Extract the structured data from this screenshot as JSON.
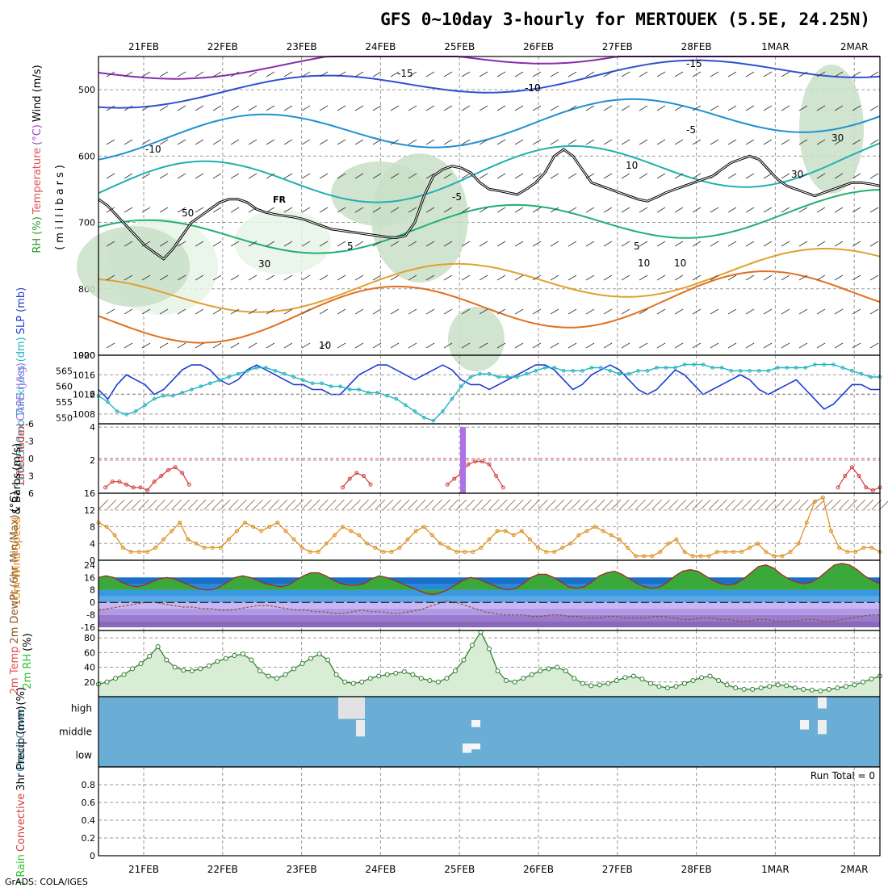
{
  "title": "GFS 0~10day 3-hourly for MERTOUEK (5.5E, 24.25N)",
  "credit": "GrADS: COLA/IGES",
  "date_ticks": [
    "21FEB",
    "22FEB",
    "23FEB",
    "24FEB",
    "25FEB",
    "26FEB",
    "27FEB",
    "28FEB",
    "1MAR",
    "2MAR"
  ],
  "colors": {
    "frame": "#000000",
    "grid": "#9a9a9a",
    "cloud_bg": "#6aaed6",
    "slp": "#1e3cd2",
    "thickness": "#20b4c0",
    "lifted": "#d23c3c",
    "cape": "#b070e8",
    "wind": "#e09020",
    "rh": "#30c030"
  },
  "chart_data": [
    {
      "type": "contour",
      "panel": "upper-air",
      "ylabel_parts": [
        {
          "text": "RH (%)",
          "color": "#2a9a2a"
        },
        {
          "text": "Temperature",
          "color": "#e05050"
        },
        {
          "text": "(°C)",
          "color": "#a040c0"
        },
        {
          "text": "Wind (m/s)",
          "color": "#000000"
        }
      ],
      "ylabel2": "(millibars)",
      "ylim": [
        900,
        450
      ],
      "yticks": [
        500,
        600,
        700,
        800,
        900
      ],
      "freezing_label": "FR",
      "contour_labels": [
        "-15",
        "-10",
        "-10",
        "-15",
        "-10",
        "-5",
        "-5",
        "5",
        "5",
        "10",
        "10",
        "10",
        "30",
        "30",
        "30",
        "50",
        "10"
      ],
      "freezing_level_mb": [
        665,
        675,
        690,
        705,
        720,
        735,
        745,
        755,
        740,
        720,
        700,
        690,
        680,
        670,
        665,
        665,
        670,
        680,
        685,
        688,
        690,
        692,
        695,
        700,
        705,
        710,
        712,
        714,
        716,
        718,
        720,
        722,
        723,
        720,
        700,
        660,
        630,
        620,
        615,
        618,
        625,
        640,
        650,
        652,
        655,
        658,
        650,
        640,
        625,
        600,
        590,
        600,
        620,
        640,
        645,
        650,
        655,
        660,
        665,
        668,
        662,
        655,
        650,
        645,
        640,
        635,
        630,
        620,
        610,
        605,
        600,
        605,
        620,
        635,
        645,
        650,
        655,
        660,
        655,
        650,
        645,
        640,
        640,
        642,
        645
      ]
    },
    {
      "type": "line",
      "panel": "slp-thickness",
      "ylabel_parts": [
        {
          "text": "1000-500mb",
          "color": "#20b4c0"
        },
        {
          "text": "Thickness (dm)",
          "color": "#20b4c0"
        },
        {
          "text": "SLP (mb)",
          "color": "#1e3cd2"
        }
      ],
      "left_ticks": [
        550,
        555,
        560,
        565
      ],
      "right_ticks": [
        1008,
        1012,
        1016,
        1020
      ],
      "slp_ylim": [
        1006,
        1020
      ],
      "thickness_ylim": [
        548,
        570
      ],
      "series": [
        {
          "name": "SLP",
          "axis": "right",
          "values": [
            1013,
            1011,
            1014,
            1016,
            1015,
            1014,
            1012,
            1013,
            1015,
            1017,
            1018,
            1018,
            1017,
            1015,
            1014,
            1015,
            1017,
            1018,
            1017,
            1016,
            1015,
            1014,
            1014,
            1013,
            1013,
            1012,
            1012,
            1014,
            1016,
            1017,
            1018,
            1018,
            1017,
            1016,
            1015,
            1016,
            1017,
            1018,
            1017,
            1015,
            1014,
            1014,
            1013,
            1014,
            1015,
            1016,
            1017,
            1018,
            1018,
            1017,
            1015,
            1013,
            1014,
            1016,
            1017,
            1018,
            1017,
            1015,
            1013,
            1012,
            1013,
            1015,
            1017,
            1016,
            1014,
            1012,
            1013,
            1014,
            1015,
            1016,
            1015,
            1013,
            1012,
            1013,
            1014,
            1015,
            1013,
            1011,
            1009,
            1010,
            1012,
            1014,
            1014,
            1013,
            1013
          ]
        },
        {
          "name": "Thickness",
          "axis": "left",
          "values": [
            557,
            555,
            552,
            551,
            552,
            554,
            556,
            557,
            557,
            558,
            559,
            560,
            561,
            562,
            563,
            564,
            565,
            566,
            566,
            565,
            564,
            563,
            562,
            561,
            561,
            560,
            560,
            559,
            559,
            558,
            558,
            557,
            556,
            554,
            552,
            550,
            549,
            552,
            556,
            560,
            563,
            564,
            564,
            563,
            563,
            563,
            564,
            565,
            566,
            566,
            565,
            565,
            565,
            566,
            566,
            565,
            564,
            564,
            565,
            565,
            566,
            566,
            566,
            567,
            567,
            567,
            566,
            566,
            565,
            565,
            565,
            565,
            565,
            566,
            566,
            566,
            566,
            567,
            567,
            567,
            566,
            565,
            564,
            563,
            563
          ]
        }
      ]
    },
    {
      "type": "line",
      "panel": "lifted-index-cape",
      "ylabel_parts": [
        {
          "text": "Lifted Index",
          "color": "#d23c3c"
        },
        {
          "text": "CAPE (J/kg)",
          "color": "#b070e8"
        }
      ],
      "left_ticks": [
        -6,
        -3,
        0,
        3,
        6
      ],
      "right_ticks": [
        2,
        4,
        6
      ],
      "lifted_ylim": [
        6,
        -6
      ],
      "cape_ylim": [
        0,
        4.2
      ],
      "series": [
        {
          "name": "Lifted Index",
          "values": [
            null,
            5,
            4,
            4,
            4.5,
            5,
            5,
            5.5,
            4,
            3,
            2,
            1.5,
            2.5,
            4.5,
            null,
            null,
            null,
            null,
            null,
            null,
            null,
            null,
            null,
            null,
            null,
            null,
            null,
            null,
            null,
            null,
            null,
            null,
            null,
            null,
            null,
            5,
            3.5,
            2.5,
            3,
            4.5,
            null,
            null,
            null,
            null,
            null,
            null,
            null,
            null,
            null,
            null,
            4.5,
            3.5,
            2.5,
            1,
            0.5,
            0.5,
            1,
            3,
            5,
            null,
            null,
            null,
            null,
            null,
            null,
            null,
            null,
            null,
            null,
            null,
            null,
            null,
            null,
            null,
            null,
            null,
            null,
            null,
            null,
            null,
            null,
            null,
            null,
            null,
            null,
            null,
            null,
            null,
            null,
            null,
            null,
            null,
            null,
            null,
            null,
            null,
            null,
            null,
            null,
            null,
            null,
            null,
            null,
            null,
            null,
            null,
            5,
            3,
            1.5,
            3,
            5,
            5.5,
            5
          ]
        },
        {
          "name": "CAPE",
          "bars": [
            {
              "index": 41,
              "value": 4
            }
          ]
        }
      ]
    },
    {
      "type": "line",
      "panel": "10m-wind",
      "ylabel_parts": [
        {
          "text": "10m Wind",
          "color": "#e09020"
        },
        {
          "text": "Speed",
          "color": "#e09020"
        },
        {
          "text": "& Barbs",
          "color": "#000000"
        },
        {
          "text": "(m/s)",
          "color": "#000000"
        }
      ],
      "yticks": [
        0,
        4,
        8,
        12,
        16
      ],
      "ylim": [
        0,
        16
      ],
      "series": [
        {
          "name": "Wind Speed",
          "values": [
            9,
            8,
            6,
            3,
            2,
            2,
            2,
            3,
            5,
            7,
            9,
            5,
            4,
            3,
            3,
            3,
            5,
            7,
            9,
            8,
            7,
            8,
            9,
            7,
            5,
            3,
            2,
            2,
            4,
            6,
            8,
            7,
            6,
            4,
            3,
            2,
            2,
            3,
            5,
            7,
            8,
            6,
            4,
            3,
            2,
            2,
            2,
            3,
            5,
            7,
            7,
            6,
            7,
            5,
            3,
            2,
            2,
            3,
            4,
            6,
            7,
            8,
            7,
            6,
            5,
            3,
            1,
            1,
            1,
            2,
            4,
            5,
            2,
            1,
            1,
            1,
            2,
            2,
            2,
            2,
            3,
            4,
            2,
            1,
            1,
            2,
            4,
            9,
            14,
            15,
            7,
            3,
            2,
            2,
            3,
            3,
            2
          ]
        }
      ]
    },
    {
      "type": "area",
      "panel": "2m-temp",
      "ylabel_parts": [
        {
          "text": "2m Temp",
          "color": "#e05050"
        },
        {
          "text": "2m DewPt",
          "color": "#8a5a2a"
        },
        {
          "text": "(6hr Min/Max)",
          "color": "#8a5a2a"
        },
        {
          "text": "(°C)",
          "color": "#000000"
        }
      ],
      "yticks": [
        -16,
        -8,
        0,
        8,
        16,
        24
      ],
      "ylim": [
        -18,
        27
      ],
      "series": [
        {
          "name": "2m Temp",
          "values": [
            16,
            17,
            16,
            13,
            11,
            10,
            11,
            13,
            15,
            16,
            15,
            13,
            11,
            9,
            8,
            8,
            10,
            13,
            16,
            17,
            16,
            14,
            12,
            11,
            10,
            11,
            14,
            17,
            19,
            19,
            17,
            14,
            12,
            11,
            11,
            12,
            15,
            17,
            16,
            14,
            12,
            10,
            8,
            6,
            5,
            6,
            8,
            11,
            14,
            16,
            15,
            13,
            11,
            9,
            8,
            9,
            12,
            16,
            18,
            18,
            16,
            13,
            10,
            9,
            10,
            13,
            17,
            19,
            20,
            18,
            15,
            12,
            10,
            9,
            10,
            13,
            17,
            20,
            21,
            20,
            17,
            14,
            12,
            11,
            12,
            15,
            19,
            23,
            24,
            22,
            18,
            15,
            13,
            12,
            13,
            16,
            20,
            24,
            25,
            24,
            21,
            17,
            14,
            12
          ]
        },
        {
          "name": "2m DewPt",
          "values": [
            -5,
            -4,
            -3,
            -2,
            -1,
            0,
            0,
            -1,
            -2,
            -3,
            -3,
            -4,
            -4,
            -5,
            -5,
            -4,
            -3,
            -2,
            -2,
            -3,
            -4,
            -5,
            -5,
            -6,
            -6,
            -7,
            -7,
            -6,
            -5,
            -6,
            -6,
            -7,
            -7,
            -6,
            -5,
            -3,
            -1,
            1,
            0,
            -2,
            -4,
            -6,
            -7,
            -8,
            -8,
            -8,
            -9,
            -9,
            -8,
            -8,
            -9,
            -9,
            -10,
            -10,
            -9,
            -9,
            -10,
            -10,
            -10,
            -9,
            -9,
            -10,
            -11,
            -11,
            -10,
            -10,
            -11,
            -11,
            -12,
            -12,
            -11,
            -11,
            -12,
            -12,
            -12,
            -11,
            -11,
            -12,
            -12,
            -11,
            -10,
            -9,
            -8,
            -8
          ]
        }
      ]
    },
    {
      "type": "area",
      "panel": "2m-rh",
      "ylabel_parts": [
        {
          "text": "2m RH",
          "color": "#30c030"
        },
        {
          "text": "(%)",
          "color": "#000000"
        }
      ],
      "yticks": [
        20,
        40,
        60,
        80
      ],
      "ylim": [
        0,
        90
      ],
      "series": [
        {
          "name": "2m RH",
          "values": [
            17,
            20,
            25,
            30,
            38,
            45,
            55,
            68,
            50,
            40,
            36,
            35,
            38,
            42,
            48,
            52,
            56,
            58,
            50,
            35,
            28,
            25,
            30,
            38,
            45,
            52,
            58,
            50,
            30,
            20,
            18,
            20,
            25,
            28,
            30,
            32,
            34,
            30,
            25,
            22,
            20,
            25,
            35,
            50,
            70,
            88,
            65,
            35,
            22,
            20,
            25,
            30,
            35,
            38,
            40,
            35,
            25,
            18,
            15,
            16,
            18,
            22,
            26,
            28,
            24,
            18,
            14,
            12,
            14,
            18,
            22,
            26,
            28,
            22,
            16,
            12,
            10,
            10,
            12,
            14,
            16,
            15,
            12,
            10,
            9,
            8,
            10,
            12,
            14,
            16,
            20,
            24,
            28
          ]
        }
      ]
    },
    {
      "type": "heatmap",
      "panel": "cloud-cover",
      "ylabel_parts": [
        {
          "text": "Cloud Cover",
          "color": "#3a8fc0"
        },
        {
          "text": "(%)",
          "color": "#000000"
        }
      ],
      "levels": [
        "high",
        "middle",
        "low"
      ],
      "cells": [
        {
          "level": "high",
          "start": 27,
          "end": 30,
          "value": 95
        },
        {
          "level": "middle",
          "start": 29,
          "end": 30,
          "value": 70
        },
        {
          "level": "low",
          "start": 41,
          "end": 42,
          "value": 40
        },
        {
          "level": "middle",
          "start": 42,
          "end": 43,
          "value": 30
        },
        {
          "level": "low",
          "start": 42,
          "end": 43,
          "value": 25
        },
        {
          "level": "middle",
          "start": 79,
          "end": 80,
          "value": 40
        },
        {
          "level": "middle",
          "start": 81,
          "end": 82,
          "value": 60
        },
        {
          "level": "high",
          "start": 81,
          "end": 82,
          "value": 50
        }
      ]
    },
    {
      "type": "bar",
      "panel": "precip",
      "ylabel_parts": [
        {
          "text": "Total / Rain",
          "color": "#30c030"
        },
        {
          "text": "Convective",
          "color": "#d23c3c"
        },
        {
          "text": "3hr Precip (mm)",
          "color": "#000000"
        }
      ],
      "yticks": [
        0,
        0.2,
        0.4,
        0.6,
        0.8
      ],
      "ylim": [
        0,
        1
      ],
      "run_total": "Run Total = 0",
      "values": []
    }
  ]
}
